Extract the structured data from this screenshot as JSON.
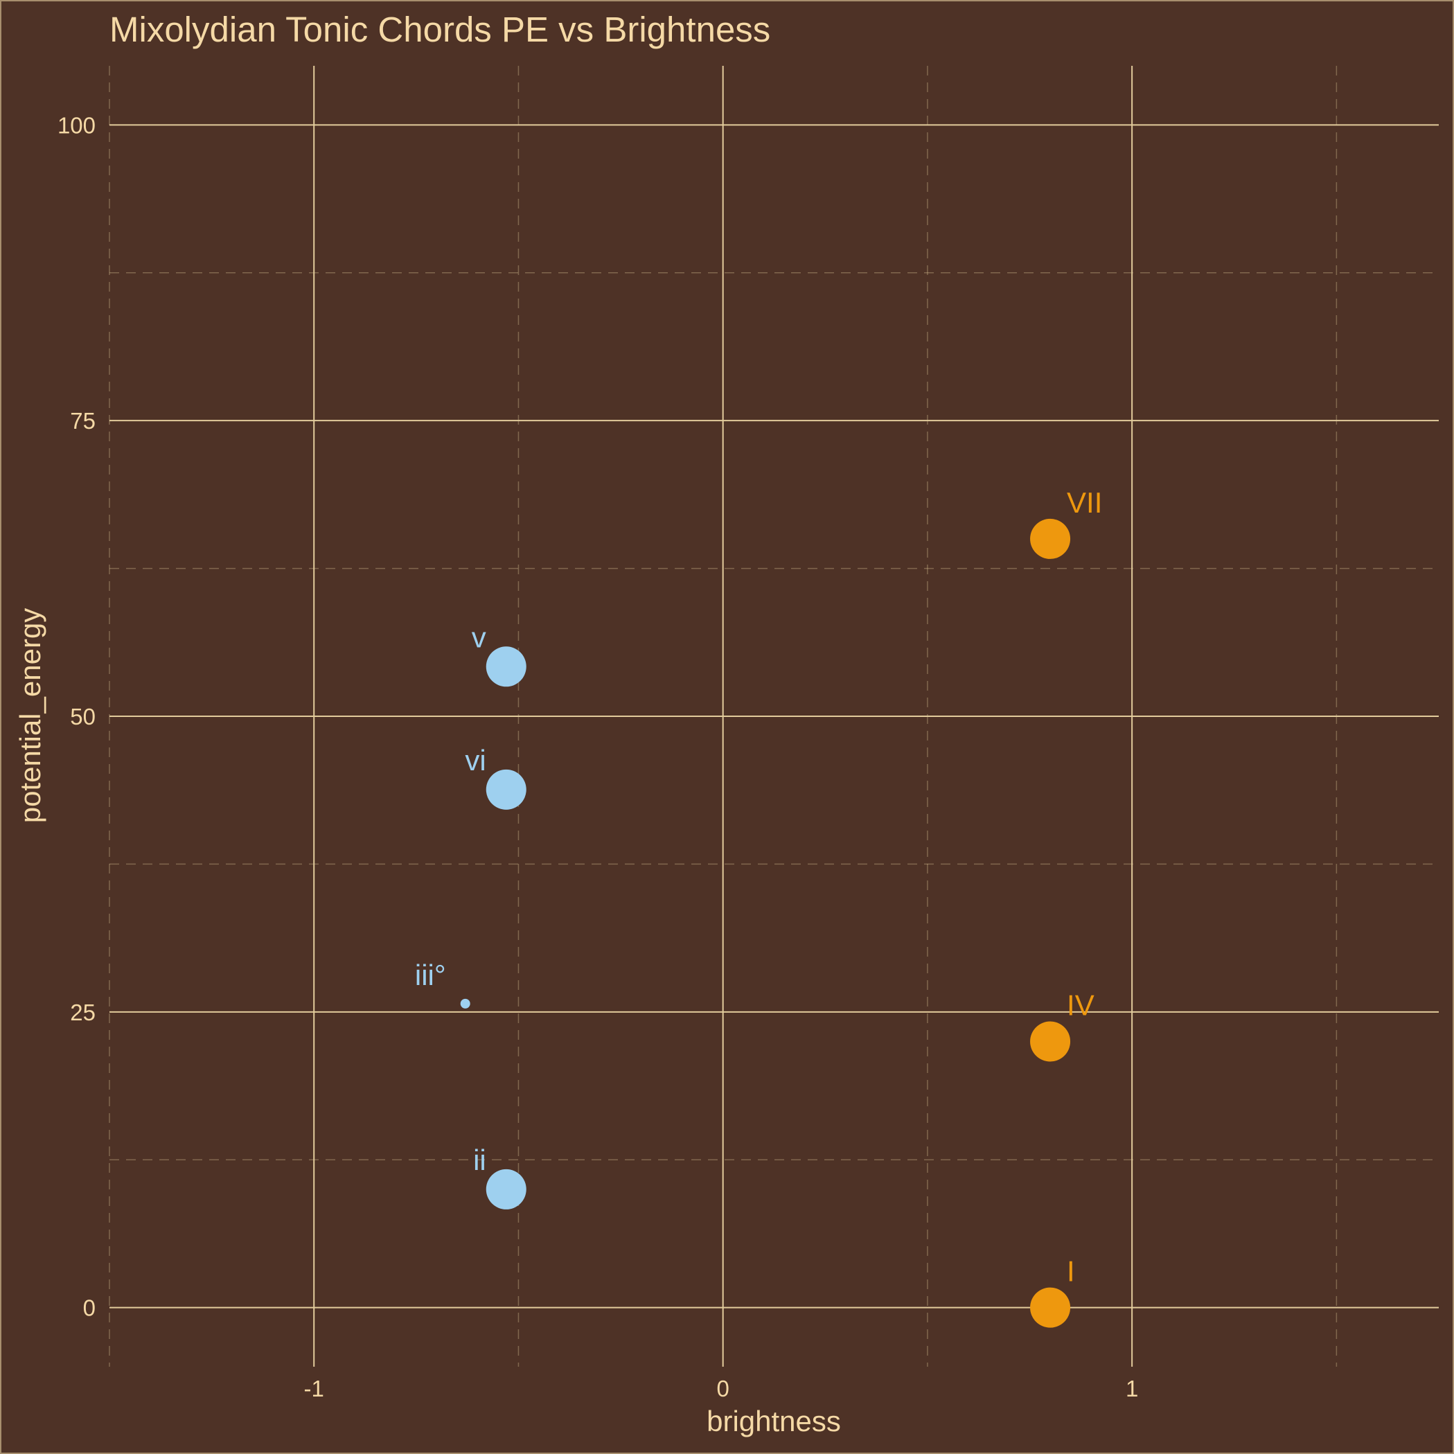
{
  "chart_data": {
    "type": "scatter",
    "title": "Mixolydian Tonic Chords PE vs Brightness",
    "xlabel": "brightness",
    "ylabel": "potential_energy",
    "xlim": [
      -1.5,
      1.75
    ],
    "ylim": [
      -5,
      105
    ],
    "x_ticks": [
      -1,
      0,
      1
    ],
    "x_tick_labels": [
      "-1",
      "0",
      "1"
    ],
    "y_ticks": [
      0,
      25,
      50,
      75,
      100
    ],
    "y_tick_labels": [
      "0",
      "25",
      "50",
      "75",
      "100"
    ],
    "x_minor_ticks": [
      -1.5,
      -0.5,
      0.5,
      1.5
    ],
    "y_minor_ticks": [
      12.5,
      37.5,
      62.5,
      87.5
    ],
    "grid": true,
    "legend": "none",
    "colors": {
      "background": "#4e3226",
      "grid": "#e3cc9c",
      "text": "#f5d9a6",
      "bright": "#ee980e",
      "dark": "#9ed0ef"
    },
    "points": [
      {
        "label": "I",
        "x": 0.8,
        "y": 0,
        "group": "bright",
        "size": "large"
      },
      {
        "label": "IV",
        "x": 0.8,
        "y": 22.5,
        "group": "bright",
        "size": "large"
      },
      {
        "label": "VII",
        "x": 0.8,
        "y": 65,
        "group": "bright",
        "size": "large"
      },
      {
        "label": "v",
        "x": -0.53,
        "y": 54.2,
        "group": "dark",
        "size": "large"
      },
      {
        "label": "vi",
        "x": -0.53,
        "y": 43.8,
        "group": "dark",
        "size": "large"
      },
      {
        "label": "iii°",
        "x": -0.63,
        "y": 25.7,
        "group": "dark",
        "size": "small"
      },
      {
        "label": "ii",
        "x": -0.53,
        "y": 10,
        "group": "dark",
        "size": "large"
      }
    ]
  }
}
